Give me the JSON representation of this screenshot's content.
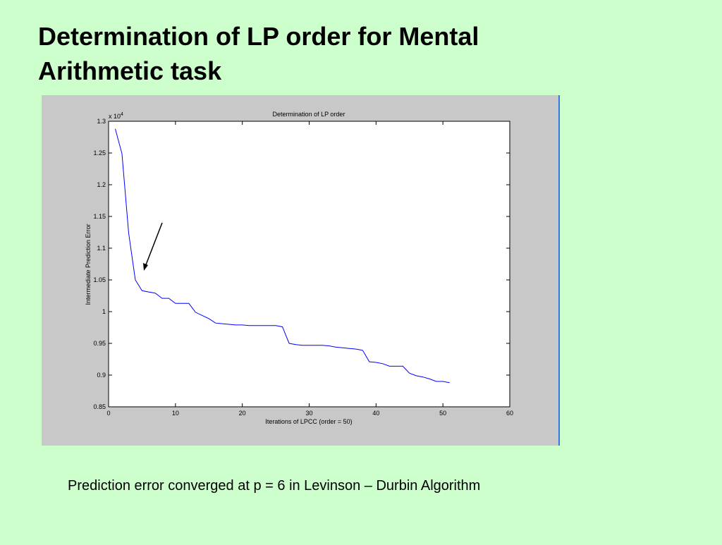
{
  "slide": {
    "title_lines": [
      "Determination of LP order for Mental",
      "Arithmetic task"
    ],
    "caption": "Prediction error converged at p = 6 in Levinson – Durbin Algorithm"
  },
  "chart_data": {
    "type": "line",
    "title": "Determination of LP order",
    "x_label": "Iterations of LPCC (order = 50)",
    "y_label": "Intermediate Prediction Error",
    "y_scale_label": {
      "base": "x 10",
      "exponent": "4"
    },
    "x": [
      1,
      2,
      3,
      4,
      5,
      6,
      7,
      8,
      9,
      10,
      11,
      12,
      13,
      14,
      15,
      16,
      17,
      18,
      19,
      20,
      21,
      22,
      23,
      24,
      25,
      26,
      27,
      28,
      29,
      30,
      31,
      32,
      33,
      34,
      35,
      36,
      37,
      38,
      39,
      40,
      41,
      42,
      43,
      44,
      45,
      46,
      47,
      48,
      49,
      50,
      51
    ],
    "series": [
      {
        "name": "Intermediate Prediction Error",
        "color": "#0000ff",
        "values": [
          1.288,
          1.249,
          1.124,
          1.05,
          1.033,
          1.031,
          1.029,
          1.021,
          1.021,
          1.013,
          1.013,
          1.013,
          0.999,
          0.994,
          0.989,
          0.982,
          0.981,
          0.98,
          0.979,
          0.979,
          0.978,
          0.978,
          0.978,
          0.978,
          0.978,
          0.976,
          0.95,
          0.948,
          0.947,
          0.947,
          0.947,
          0.947,
          0.946,
          0.944,
          0.943,
          0.942,
          0.941,
          0.939,
          0.921,
          0.92,
          0.918,
          0.914,
          0.914,
          0.914,
          0.903,
          0.899,
          0.897,
          0.894,
          0.89,
          0.89,
          0.888
        ]
      }
    ],
    "xlim": [
      0,
      60
    ],
    "xticks": [
      0,
      10,
      20,
      30,
      40,
      50,
      60
    ],
    "ylim": [
      0.85,
      1.3
    ],
    "yticks": [
      0.85,
      0.9,
      0.95,
      1,
      1.05,
      1.1,
      1.15,
      1.2,
      1.25,
      1.3
    ]
  }
}
